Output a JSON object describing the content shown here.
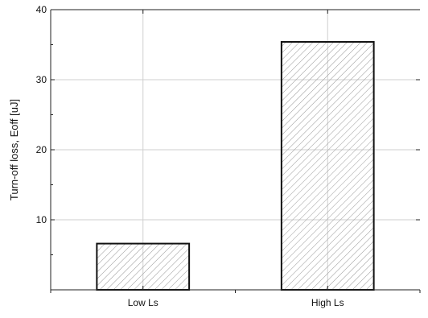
{
  "chart_data": {
    "type": "bar",
    "title": "",
    "xlabel": "",
    "ylabel": "Turn-off loss, Eoff [uJ]",
    "categories": [
      "Low Ls",
      "High Ls"
    ],
    "values": [
      6.6,
      35.4
    ],
    "ylim": [
      0,
      40
    ],
    "yticks": [
      10,
      20,
      30,
      40
    ],
    "grid": true,
    "bar_fill": "hatched",
    "colors": {
      "bar_stroke": "#111111",
      "hatch": "#9a9a9a",
      "grid": "#cfcfcf",
      "axis": "#222222"
    }
  }
}
